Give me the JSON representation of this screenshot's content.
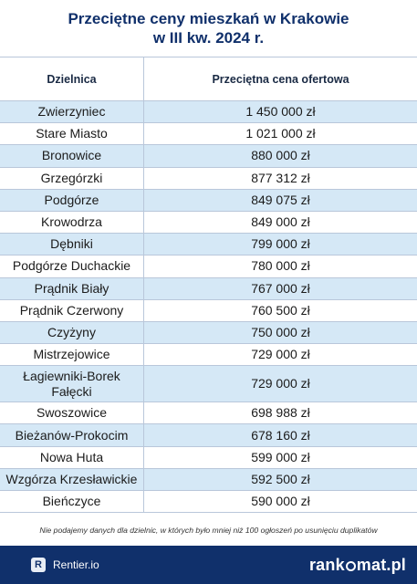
{
  "title": {
    "line1": "Przeciętne ceny mieszkań w Krakowie",
    "line2": "w III kw. 2024 r."
  },
  "table": {
    "headers": [
      "Dzielnica",
      "Przeciętna cena ofertowa"
    ],
    "rows": [
      {
        "district": "Zwierzyniec",
        "price": "1 450 000 zł"
      },
      {
        "district": "Stare Miasto",
        "price": "1 021 000 zł"
      },
      {
        "district": "Bronowice",
        "price": "880 000 zł"
      },
      {
        "district": "Grzegórzki",
        "price": "877 312 zł"
      },
      {
        "district": "Podgórze",
        "price": "849 075 zł"
      },
      {
        "district": "Krowodrza",
        "price": "849 000 zł"
      },
      {
        "district": "Dębniki",
        "price": "799 000 zł"
      },
      {
        "district": "Podgórze Duchackie",
        "price": "780 000 zł"
      },
      {
        "district": "Prądnik Biały",
        "price": "767 000 zł"
      },
      {
        "district": "Prądnik Czerwony",
        "price": "760 500 zł"
      },
      {
        "district": "Czyżyny",
        "price": "750 000 zł"
      },
      {
        "district": "Mistrzejowice",
        "price": "729 000 zł"
      },
      {
        "district_line1": "Łagiewniki-Borek",
        "district_line2": "Fałęcki",
        "price": "729 000 zł"
      },
      {
        "district": "Swoszowice",
        "price": "698 988 zł"
      },
      {
        "district": "Bieżanów-Prokocim",
        "price": "678 160 zł"
      },
      {
        "district": "Nowa Huta",
        "price": "599 000 zł"
      },
      {
        "district": "Wzgórza Krzesławickie",
        "price": "592 500 zł"
      },
      {
        "district": "Bieńczyce",
        "price": "590 000 zł"
      }
    ]
  },
  "footnote": "Nie podajemy danych dla dzielnic, w których było mniej niż 100 ogłoszeń po usunięciu duplikatów",
  "footer": {
    "left_logo_letter": "R",
    "left_label": "Rentier.io",
    "right_brand_part1": "rank",
    "right_brand_part2": "mat.pl"
  },
  "colors": {
    "brand_navy": "#10306b",
    "row_alt": "#d5e8f6",
    "grid": "#b9c7da"
  }
}
